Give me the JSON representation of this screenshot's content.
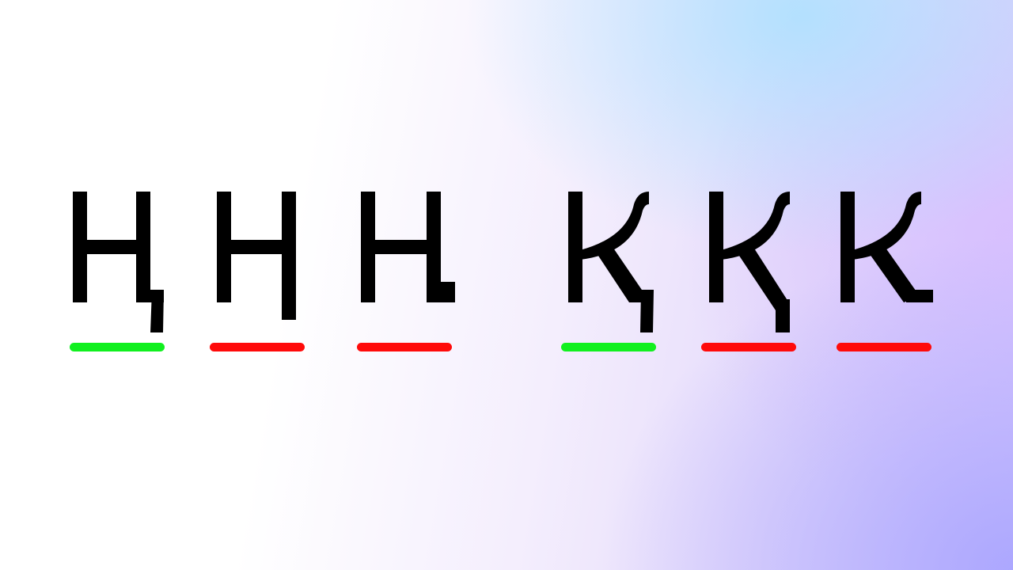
{
  "letters": [
    {
      "char": "Ң",
      "status": "correct"
    },
    {
      "char": "Н",
      "status": "incorrect"
    },
    {
      "char": "Н",
      "status": "incorrect"
    },
    {
      "char": "Қ",
      "status": "correct"
    },
    {
      "char": "К",
      "status": "incorrect"
    },
    {
      "char": "К",
      "status": "incorrect"
    }
  ],
  "colors": {
    "correct": "#11f01f",
    "incorrect": "#ff0a0a",
    "glyph": "#000000"
  }
}
